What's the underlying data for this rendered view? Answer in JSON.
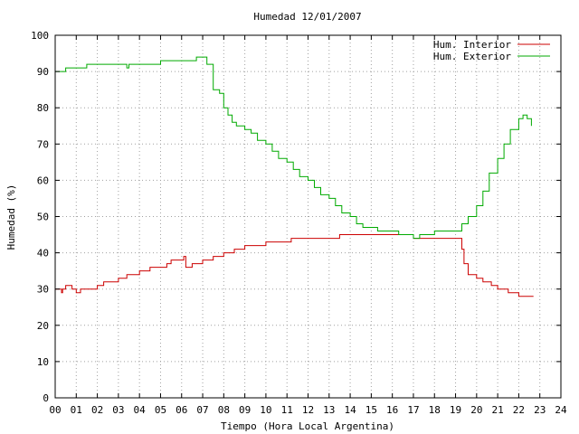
{
  "chart_data": {
    "type": "line",
    "title": "Humedad 12/01/2007",
    "xlabel": "Tiempo (Hora Local Argentina)",
    "ylabel": "Humedad (%)",
    "xlim": [
      0,
      24
    ],
    "ylim": [
      0,
      100
    ],
    "x_ticks": [
      "00",
      "01",
      "02",
      "03",
      "04",
      "05",
      "06",
      "07",
      "08",
      "09",
      "10",
      "11",
      "12",
      "13",
      "14",
      "15",
      "16",
      "17",
      "18",
      "19",
      "20",
      "21",
      "22",
      "23",
      "24"
    ],
    "y_ticks": [
      0,
      10,
      20,
      30,
      40,
      50,
      60,
      70,
      80,
      90,
      100
    ],
    "grid": true,
    "legend_position": "top-right",
    "series": [
      {
        "name": "Hum. Interior",
        "color": "#cc0000",
        "x": [
          0,
          0.3,
          0.35,
          0.5,
          0.8,
          1.0,
          1.2,
          1.3,
          1.5,
          2.0,
          2.3,
          3.0,
          3.4,
          3.5,
          4.0,
          4.5,
          5.0,
          5.3,
          5.5,
          6.0,
          6.1,
          6.2,
          6.3,
          6.5,
          7.0,
          7.5,
          8.0,
          8.3,
          8.5,
          9.0,
          9.5,
          10.0,
          10.5,
          11.0,
          11.2,
          11.5,
          12.0,
          12.5,
          13.0,
          13.5,
          14.0,
          14.5,
          15.0,
          15.5,
          16.0,
          16.5,
          17.0,
          17.5,
          18.0,
          18.5,
          19.0,
          19.2,
          19.3,
          19.4,
          19.6,
          20.0,
          20.3,
          20.7,
          21.0,
          21.5,
          21.8,
          22.0,
          22.2,
          22.3,
          22.5,
          22.7
        ],
        "y": [
          30,
          29,
          30,
          31,
          30,
          29,
          30,
          30,
          30,
          31,
          32,
          33,
          34,
          34,
          35,
          36,
          36,
          37,
          38,
          38,
          39,
          36,
          36,
          37,
          38,
          39,
          40,
          40,
          41,
          42,
          42,
          43,
          43,
          43,
          44,
          44,
          44,
          44,
          44,
          45,
          45,
          45,
          45,
          45,
          45,
          45,
          44,
          44,
          44,
          44,
          44,
          44,
          41,
          37,
          34,
          33,
          32,
          31,
          30,
          29,
          29,
          28,
          28,
          28,
          28,
          28
        ]
      },
      {
        "name": "Hum. Exterior",
        "color": "#00aa00",
        "x": [
          0,
          0.3,
          0.5,
          0.8,
          1.0,
          1.2,
          1.5,
          2.0,
          2.5,
          3.0,
          3.4,
          3.5,
          4.0,
          4.5,
          4.8,
          5.0,
          5.5,
          6.0,
          6.3,
          6.7,
          7.0,
          7.2,
          7.5,
          7.8,
          8.0,
          8.2,
          8.4,
          8.6,
          8.8,
          9.0,
          9.3,
          9.6,
          10.0,
          10.3,
          10.6,
          11.0,
          11.3,
          11.6,
          12.0,
          12.3,
          12.6,
          13.0,
          13.3,
          13.6,
          14.0,
          14.3,
          14.6,
          15.0,
          15.3,
          15.6,
          16.0,
          16.3,
          16.6,
          17.0,
          17.3,
          17.6,
          18.0,
          18.3,
          18.6,
          19.0,
          19.3,
          19.6,
          20.0,
          20.3,
          20.6,
          21.0,
          21.3,
          21.6,
          22.0,
          22.2,
          22.4,
          22.6
        ],
        "y": [
          90,
          90,
          91,
          91,
          91,
          91,
          92,
          92,
          92,
          92,
          91,
          92,
          92,
          92,
          92,
          93,
          93,
          93,
          93,
          94,
          94,
          92,
          85,
          84,
          80,
          78,
          76,
          75,
          75,
          74,
          73,
          71,
          70,
          68,
          66,
          65,
          63,
          61,
          60,
          58,
          56,
          55,
          53,
          51,
          50,
          48,
          47,
          47,
          46,
          46,
          46,
          45,
          45,
          44,
          45,
          45,
          46,
          46,
          46,
          46,
          48,
          50,
          53,
          57,
          62,
          66,
          70,
          74,
          77,
          78,
          77,
          75
        ]
      }
    ]
  }
}
